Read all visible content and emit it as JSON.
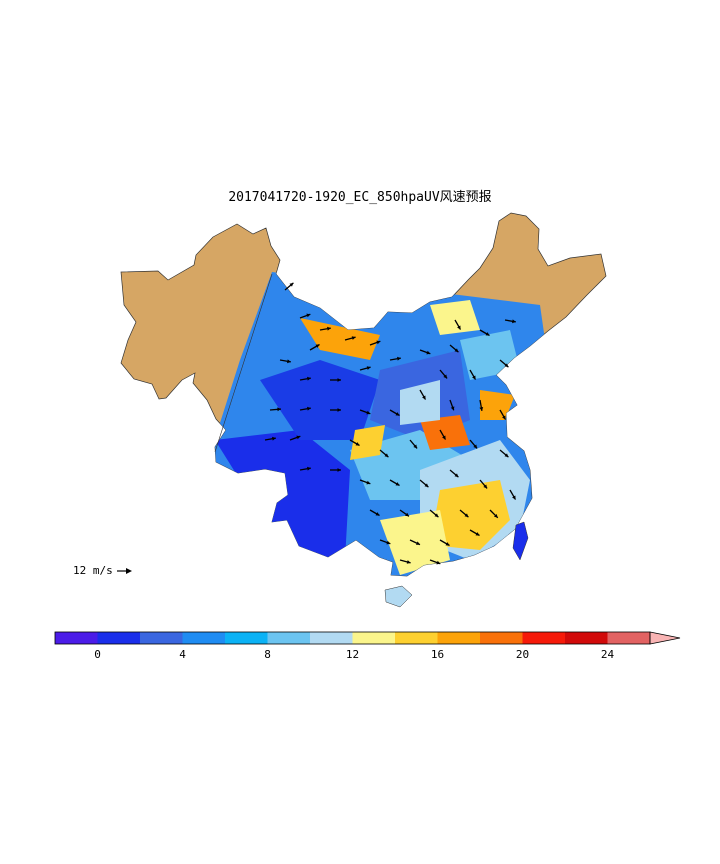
{
  "title": "2017041720-1920_EC_850hpaUV风速预报",
  "reference_vector": {
    "label": "12 m/s",
    "speed": 12,
    "unit": "m/s"
  },
  "colorbar": {
    "colors": [
      "#4b1ce8",
      "#1a2eea",
      "#3a66e0",
      "#1f8cf2",
      "#0bb2f5",
      "#6cc4f0",
      "#b2daf2",
      "#fbf58c",
      "#fdd030",
      "#fca30a",
      "#f9710a",
      "#f61a0a",
      "#d10a0a",
      "#e26262",
      "#f9b4b4"
    ],
    "boundaries": [
      -2,
      0,
      2,
      4,
      6,
      8,
      10,
      12,
      14,
      16,
      18,
      20,
      22,
      24,
      26
    ],
    "ticks": [
      "0",
      "4",
      "8",
      "12",
      "16",
      "20",
      "24"
    ],
    "extend": "max"
  },
  "colors": {
    "background_land": "#d6a664",
    "border_line": "#333333",
    "vector_color": "#000000"
  }
}
